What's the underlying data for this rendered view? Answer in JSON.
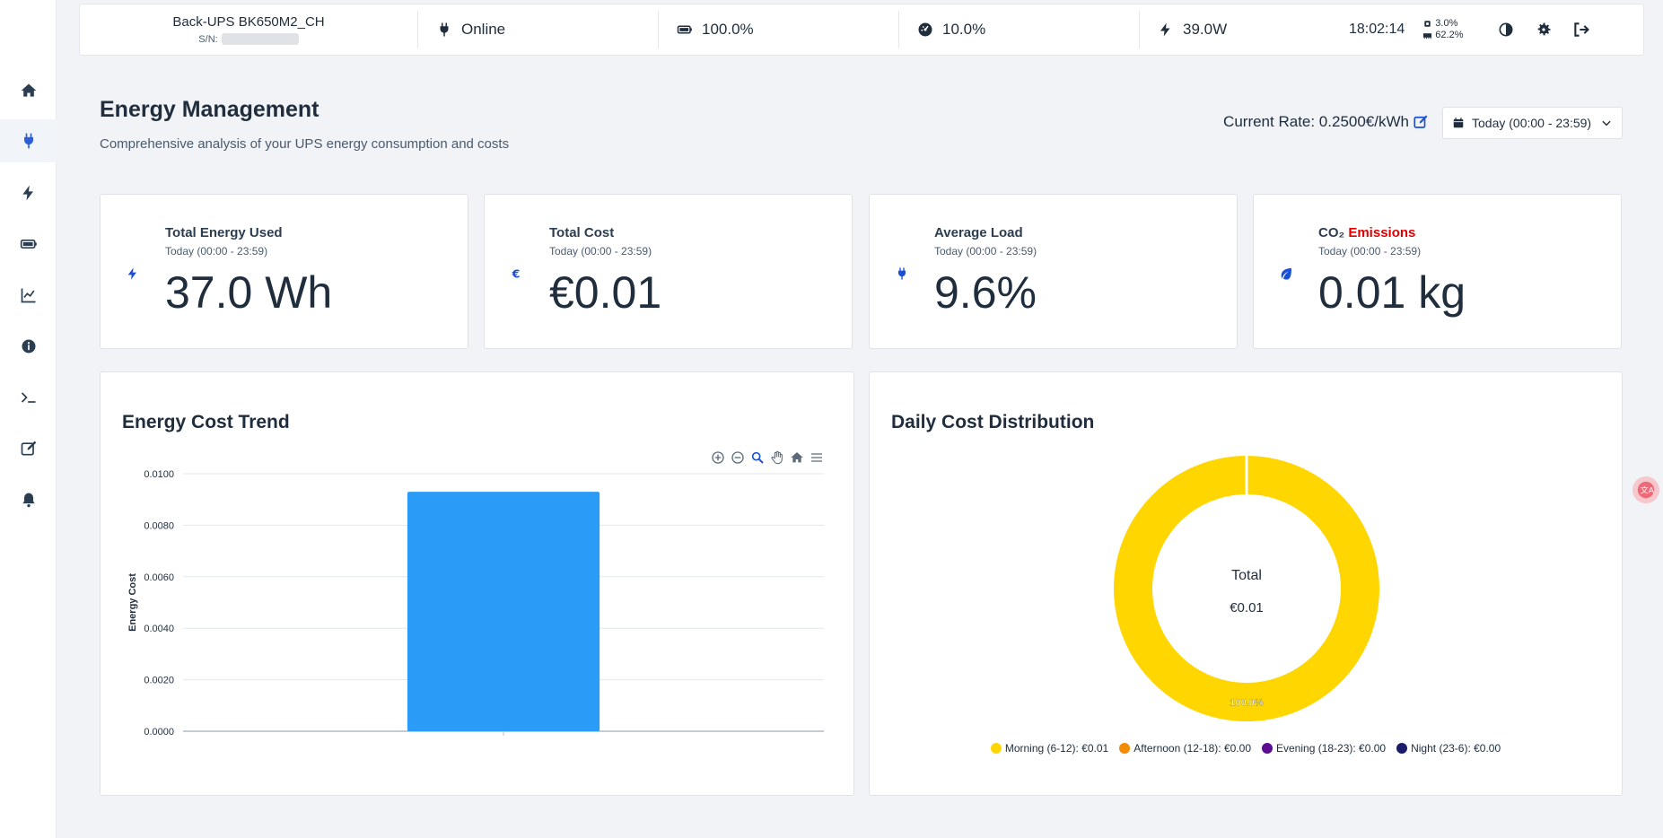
{
  "topbar": {
    "device_name": "Back-UPS BK650M2_CH",
    "sn_label": "S/N:",
    "status": "Online",
    "battery": "100.0%",
    "load": "10.0%",
    "power": "39.0W",
    "time": "18:02:14",
    "cpu": "3.0%",
    "memory": "62.2%"
  },
  "header": {
    "title": "Energy Management",
    "subtitle": "Comprehensive analysis of your UPS energy consumption and costs",
    "rate_label": "Current Rate: 0.2500€/kWh",
    "range_label": "Today (00:00 - 23:59)"
  },
  "cards": [
    {
      "title": "Total Energy Used",
      "subtitle": "Today (00:00 - 23:59)",
      "value": "37.0 Wh",
      "icon": "bolt-icon"
    },
    {
      "title": "Total Cost",
      "subtitle": "Today (00:00 - 23:59)",
      "value": "€0.01",
      "icon": "euro-icon"
    },
    {
      "title": "Average Load",
      "subtitle": "Today (00:00 - 23:59)",
      "value": "9.6%",
      "icon": "plug-icon"
    },
    {
      "title_prefix": "CO₂",
      "title_suffix": "Emissions",
      "subtitle": "Today (00:00 - 23:59)",
      "value": "0.01 kg",
      "icon": "leaf-icon"
    }
  ],
  "trend": {
    "title": "Energy Cost Trend"
  },
  "distribution": {
    "title": "Daily Cost Distribution",
    "center_label": "Total",
    "center_value": "€0.01",
    "slice_label": "100.0%"
  },
  "chart_data": [
    {
      "type": "bar",
      "title": "Energy Cost Trend",
      "ylabel": "Energy Cost",
      "xlabel": "",
      "categories": [
        ""
      ],
      "values": [
        0.0093
      ],
      "ylim": [
        0,
        0.01
      ],
      "yticks": [
        "0.0000",
        "0.0020",
        "0.0040",
        "0.0060",
        "0.0080",
        "0.0100"
      ],
      "grid": true,
      "color": "#2a9cf8"
    },
    {
      "type": "pie",
      "title": "Daily Cost Distribution",
      "donut": true,
      "slices": [
        {
          "label": "Morning (6-12): €0.01",
          "value": 100.0,
          "color": "#ffd600"
        },
        {
          "label": "Afternoon (12-18): €0.00",
          "value": 0,
          "color": "#f28c00"
        },
        {
          "label": "Evening (18-23): €0.00",
          "value": 0,
          "color": "#5b0e91"
        },
        {
          "label": "Night (23-6): €0.00",
          "value": 0,
          "color": "#1b1b6b"
        }
      ],
      "legend_position": "bottom"
    }
  ]
}
